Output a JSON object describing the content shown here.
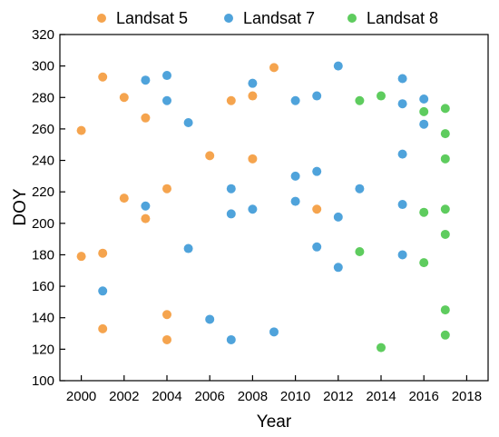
{
  "chart_data": {
    "type": "scatter",
    "xlabel": "Year",
    "ylabel": "DOY",
    "xlim": [
      1999,
      2019
    ],
    "ylim": [
      100,
      320
    ],
    "xticks": [
      2000,
      2002,
      2004,
      2006,
      2008,
      2010,
      2012,
      2014,
      2016,
      2018
    ],
    "yticks": [
      100,
      120,
      140,
      160,
      180,
      200,
      220,
      240,
      260,
      280,
      300,
      320
    ],
    "grid": false,
    "legend_position": "top",
    "series": [
      {
        "name": "Landsat 5",
        "color": "#F5A44E",
        "points": [
          {
            "x": 2000,
            "y": 259
          },
          {
            "x": 2000,
            "y": 179
          },
          {
            "x": 2001,
            "y": 293
          },
          {
            "x": 2001,
            "y": 181
          },
          {
            "x": 2001,
            "y": 133
          },
          {
            "x": 2002,
            "y": 280
          },
          {
            "x": 2002,
            "y": 216
          },
          {
            "x": 2003,
            "y": 267
          },
          {
            "x": 2003,
            "y": 203
          },
          {
            "x": 2004,
            "y": 222
          },
          {
            "x": 2004,
            "y": 142
          },
          {
            "x": 2004,
            "y": 126
          },
          {
            "x": 2006,
            "y": 243
          },
          {
            "x": 2007,
            "y": 278
          },
          {
            "x": 2008,
            "y": 281
          },
          {
            "x": 2008,
            "y": 241
          },
          {
            "x": 2009,
            "y": 299
          },
          {
            "x": 2011,
            "y": 209
          }
        ]
      },
      {
        "name": "Landsat 7",
        "color": "#4FA3DB",
        "points": [
          {
            "x": 2001,
            "y": 157
          },
          {
            "x": 2003,
            "y": 291
          },
          {
            "x": 2003,
            "y": 211
          },
          {
            "x": 2004,
            "y": 294
          },
          {
            "x": 2004,
            "y": 278
          },
          {
            "x": 2005,
            "y": 264
          },
          {
            "x": 2005,
            "y": 184
          },
          {
            "x": 2006,
            "y": 139
          },
          {
            "x": 2007,
            "y": 222
          },
          {
            "x": 2007,
            "y": 206
          },
          {
            "x": 2007,
            "y": 126
          },
          {
            "x": 2008,
            "y": 289
          },
          {
            "x": 2008,
            "y": 209
          },
          {
            "x": 2009,
            "y": 131
          },
          {
            "x": 2010,
            "y": 278
          },
          {
            "x": 2010,
            "y": 230
          },
          {
            "x": 2010,
            "y": 214
          },
          {
            "x": 2011,
            "y": 281
          },
          {
            "x": 2011,
            "y": 233
          },
          {
            "x": 2011,
            "y": 185
          },
          {
            "x": 2012,
            "y": 300
          },
          {
            "x": 2012,
            "y": 204
          },
          {
            "x": 2012,
            "y": 172
          },
          {
            "x": 2013,
            "y": 222
          },
          {
            "x": 2015,
            "y": 292
          },
          {
            "x": 2015,
            "y": 276
          },
          {
            "x": 2015,
            "y": 244
          },
          {
            "x": 2015,
            "y": 212
          },
          {
            "x": 2015,
            "y": 180
          },
          {
            "x": 2016,
            "y": 279
          },
          {
            "x": 2016,
            "y": 263
          }
        ]
      },
      {
        "name": "Landsat 8",
        "color": "#5ECC5E",
        "points": [
          {
            "x": 2013,
            "y": 278
          },
          {
            "x": 2013,
            "y": 182
          },
          {
            "x": 2014,
            "y": 281
          },
          {
            "x": 2014,
            "y": 121
          },
          {
            "x": 2016,
            "y": 271
          },
          {
            "x": 2016,
            "y": 207
          },
          {
            "x": 2016,
            "y": 175
          },
          {
            "x": 2017,
            "y": 273
          },
          {
            "x": 2017,
            "y": 257
          },
          {
            "x": 2017,
            "y": 241
          },
          {
            "x": 2017,
            "y": 209
          },
          {
            "x": 2017,
            "y": 193
          },
          {
            "x": 2017,
            "y": 145
          },
          {
            "x": 2017,
            "y": 129
          }
        ]
      }
    ]
  }
}
